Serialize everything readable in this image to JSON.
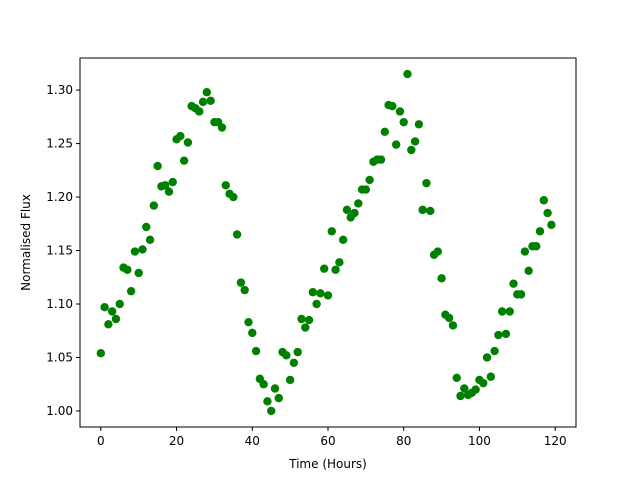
{
  "chart_data": {
    "type": "scatter",
    "xlabel": "Time (Hours)",
    "ylabel": "Normalised Flux",
    "xlim": [
      -5.5,
      125.5
    ],
    "ylim": [
      0.985,
      1.33
    ],
    "xticks": [
      0,
      20,
      40,
      60,
      80,
      100,
      120
    ],
    "yticks": [
      1.0,
      1.05,
      1.1,
      1.15,
      1.2,
      1.25,
      1.3
    ],
    "xtick_labels": [
      "0",
      "20",
      "40",
      "60",
      "80",
      "100",
      "120"
    ],
    "ytick_labels": [
      "1.00",
      "1.05",
      "1.10",
      "1.15",
      "1.20",
      "1.25",
      "1.30"
    ],
    "marker_color": "#008000",
    "grid": false,
    "series": [
      {
        "points": [
          [
            0,
            1.054
          ],
          [
            1,
            1.097
          ],
          [
            2,
            1.081
          ],
          [
            3,
            1.093
          ],
          [
            4,
            1.086
          ],
          [
            5,
            1.1
          ],
          [
            6,
            1.134
          ],
          [
            7,
            1.132
          ],
          [
            8,
            1.112
          ],
          [
            9,
            1.149
          ],
          [
            10,
            1.129
          ],
          [
            11,
            1.151
          ],
          [
            12,
            1.172
          ],
          [
            13,
            1.16
          ],
          [
            14,
            1.192
          ],
          [
            15,
            1.229
          ],
          [
            16,
            1.21
          ],
          [
            17,
            1.211
          ],
          [
            18,
            1.205
          ],
          [
            19,
            1.214
          ],
          [
            20,
            1.254
          ],
          [
            21,
            1.257
          ],
          [
            22,
            1.234
          ],
          [
            23,
            1.251
          ],
          [
            24,
            1.285
          ],
          [
            25,
            1.283
          ],
          [
            26,
            1.28
          ],
          [
            27,
            1.289
          ],
          [
            28,
            1.298
          ],
          [
            29,
            1.29
          ],
          [
            30,
            1.27
          ],
          [
            31,
            1.27
          ],
          [
            32,
            1.265
          ],
          [
            33,
            1.211
          ],
          [
            34,
            1.203
          ],
          [
            35,
            1.2
          ],
          [
            36,
            1.165
          ],
          [
            37,
            1.12
          ],
          [
            38,
            1.113
          ],
          [
            39,
            1.083
          ],
          [
            40,
            1.073
          ],
          [
            41,
            1.056
          ],
          [
            42,
            1.03
          ],
          [
            43,
            1.025
          ],
          [
            44,
            1.009
          ],
          [
            45,
            1.0
          ],
          [
            46,
            1.021
          ],
          [
            47,
            1.012
          ],
          [
            48,
            1.055
          ],
          [
            49,
            1.052
          ],
          [
            50,
            1.029
          ],
          [
            51,
            1.045
          ],
          [
            52,
            1.055
          ],
          [
            53,
            1.086
          ],
          [
            54,
            1.078
          ],
          [
            55,
            1.085
          ],
          [
            56,
            1.111
          ],
          [
            57,
            1.1
          ],
          [
            58,
            1.11
          ],
          [
            59,
            1.133
          ],
          [
            60,
            1.108
          ],
          [
            61,
            1.168
          ],
          [
            62,
            1.132
          ],
          [
            63,
            1.139
          ],
          [
            64,
            1.16
          ],
          [
            65,
            1.188
          ],
          [
            66,
            1.181
          ],
          [
            67,
            1.185
          ],
          [
            68,
            1.194
          ],
          [
            69,
            1.207
          ],
          [
            70,
            1.207
          ],
          [
            71,
            1.216
          ],
          [
            72,
            1.233
          ],
          [
            73,
            1.235
          ],
          [
            74,
            1.235
          ],
          [
            75,
            1.261
          ],
          [
            76,
            1.286
          ],
          [
            77,
            1.285
          ],
          [
            78,
            1.249
          ],
          [
            79,
            1.28
          ],
          [
            80,
            1.27
          ],
          [
            81,
            1.315
          ],
          [
            82,
            1.244
          ],
          [
            83,
            1.252
          ],
          [
            84,
            1.268
          ],
          [
            85,
            1.188
          ],
          [
            86,
            1.213
          ],
          [
            87,
            1.187
          ],
          [
            88,
            1.146
          ],
          [
            89,
            1.149
          ],
          [
            90,
            1.124
          ],
          [
            91,
            1.09
          ],
          [
            92,
            1.087
          ],
          [
            93,
            1.08
          ],
          [
            94,
            1.031
          ],
          [
            95,
            1.014
          ],
          [
            96,
            1.021
          ],
          [
            97,
            1.015
          ],
          [
            98,
            1.017
          ],
          [
            99,
            1.02
          ],
          [
            100,
            1.029
          ],
          [
            101,
            1.026
          ],
          [
            102,
            1.05
          ],
          [
            103,
            1.032
          ],
          [
            104,
            1.056
          ],
          [
            105,
            1.071
          ],
          [
            106,
            1.093
          ],
          [
            107,
            1.072
          ],
          [
            108,
            1.093
          ],
          [
            109,
            1.119
          ],
          [
            110,
            1.109
          ],
          [
            111,
            1.109
          ],
          [
            112,
            1.149
          ],
          [
            113,
            1.131
          ],
          [
            114,
            1.154
          ],
          [
            115,
            1.154
          ],
          [
            116,
            1.168
          ],
          [
            117,
            1.197
          ],
          [
            118,
            1.185
          ],
          [
            119,
            1.174
          ]
        ]
      }
    ]
  }
}
